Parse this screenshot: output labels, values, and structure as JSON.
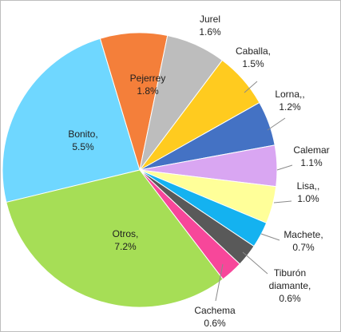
{
  "chart_data": {
    "type": "pie",
    "series": [
      {
        "slices": [
          {
            "label": "Bonito,",
            "value": 5.5,
            "value_label": "5.5%",
            "color": "#6fd7ff"
          },
          {
            "label": "Pejerrey",
            "value": 1.8,
            "value_label": "1.8%",
            "color": "#f47f3a"
          },
          {
            "label": "Jurel",
            "value": 1.6,
            "value_label": "1.6%",
            "color": "#bdbdbd"
          },
          {
            "label": "Caballa,",
            "value": 1.5,
            "value_label": "1.5%",
            "color": "#ffcb1f"
          },
          {
            "label": "Lorna,,",
            "value": 1.2,
            "value_label": "1.2%",
            "color": "#4472c4"
          },
          {
            "label": "Calemar",
            "value": 1.1,
            "value_label": "1.1%",
            "color": "#d9a6f2"
          },
          {
            "label": "Lisa,,",
            "value": 1.0,
            "value_label": "1.0%",
            "color": "#ffff99"
          },
          {
            "label": "Machete,",
            "value": 0.7,
            "value_label": "0.7%",
            "color": "#14b2f0"
          },
          {
            "label": "Tiburón diamante,",
            "value": 0.6,
            "value_label": "0.6%",
            "color": "#595959"
          },
          {
            "label": "Cachema",
            "value": 0.6,
            "value_label": "0.6%",
            "color": "#f7479a"
          },
          {
            "label": "Otros,",
            "value": 7.2,
            "value_label": "7.2%",
            "color": "#a6de56"
          }
        ]
      }
    ],
    "legend": "none",
    "grid": false
  }
}
